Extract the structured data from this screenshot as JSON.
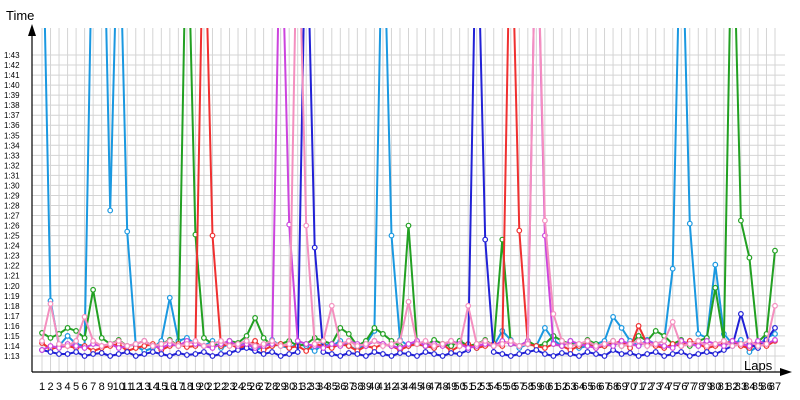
{
  "chart_data": {
    "type": "line",
    "title": "",
    "ylabel": "Time",
    "xlabel": "Laps",
    "grid": true,
    "legend": "none",
    "x_range": [
      1,
      87
    ],
    "y_range_seconds": [
      73,
      103
    ],
    "y_ticks": [
      "1:13",
      "1:14",
      "1:15",
      "1:16",
      "1:17",
      "1:18",
      "1:19",
      "1:20",
      "1:21",
      "1:22",
      "1:23",
      "1:24",
      "1:25",
      "1:26",
      "1:27",
      "1:28",
      "1:29",
      "1:30",
      "1:31",
      "1:32",
      "1:33",
      "1:34",
      "1:35",
      "1:36",
      "1:37",
      "1:38",
      "1:39",
      "1:40",
      "1:41",
      "1:42",
      "1:43"
    ],
    "x_ticks": [
      "1",
      "2",
      "3",
      "4",
      "5",
      "6",
      "7",
      "8",
      "9",
      "10",
      "11",
      "12",
      "13",
      "14",
      "15",
      "16",
      "17",
      "18",
      "19",
      "20",
      "21",
      "22",
      "23",
      "24",
      "25",
      "26",
      "27",
      "28",
      "29",
      "30",
      "31",
      "32",
      "33",
      "34",
      "35",
      "36",
      "37",
      "38",
      "39",
      "40",
      "41",
      "42",
      "43",
      "44",
      "45",
      "46",
      "47",
      "48",
      "49",
      "50",
      "51",
      "52",
      "53",
      "54",
      "55",
      "56",
      "57",
      "58",
      "59",
      "60",
      "61",
      "62",
      "63",
      "64",
      "65",
      "66",
      "67",
      "68",
      "69",
      "70",
      "71",
      "72",
      "73",
      "74",
      "75",
      "76",
      "77",
      "78",
      "79",
      "80",
      "81",
      "82",
      "83",
      "84",
      "85",
      "86",
      "87"
    ],
    "series": [
      {
        "color": "#1a98e0",
        "values": [
          120,
          78.5,
          74.0,
          75.0,
          74.2,
          74.0,
          120,
          127,
          87.5,
          120,
          85.4,
          74.0,
          73.5,
          73.8,
          74.5,
          78.8,
          74.5,
          74.8,
          74.2,
          74.0,
          74.5,
          73.8,
          74.2,
          74.0,
          74.5,
          73.5,
          74.0,
          74.6,
          74.0,
          73.8,
          74.2,
          74.0,
          73.5,
          74.2,
          74.0,
          74.5,
          74.0,
          73.6,
          74.2,
          75.5,
          120,
          85.0,
          74.6,
          74.0,
          74.5,
          74.0,
          73.8,
          74.2,
          74.0,
          74.5,
          74.0,
          73.8,
          74.2,
          74.0,
          75.5,
          74.6,
          73.8,
          74.2,
          74.0,
          75.8,
          74.6,
          74.0,
          74.5,
          73.8,
          74.0,
          74.2,
          74.5,
          76.9,
          75.8,
          74.5,
          74.0,
          74.6,
          74.2,
          74.5,
          81.7,
          120,
          86.2,
          75.2,
          74.8,
          82.1,
          75.2,
          74.2,
          74.6,
          73.4,
          74.0,
          74.8,
          75.2
        ]
      },
      {
        "color": "#22a022",
        "values": [
          75.3,
          74.8,
          75.2,
          75.8,
          75.5,
          74.8,
          79.6,
          74.8,
          74.2,
          74.6,
          74.0,
          74.2,
          74.5,
          74.0,
          74.2,
          74.6,
          74.0,
          120,
          85.1,
          74.8,
          74.2,
          74.0,
          74.5,
          74.3,
          75.0,
          76.8,
          74.8,
          74.0,
          74.2,
          74.5,
          74.0,
          74.2,
          74.8,
          74.5,
          74.2,
          75.8,
          75.2,
          74.0,
          74.5,
          75.8,
          75.2,
          74.5,
          74.0,
          86.0,
          74.2,
          74.0,
          74.6,
          74.2,
          74.0,
          74.5,
          74.0,
          74.2,
          74.6,
          74.0,
          84.6,
          74.2,
          74.0,
          74.5,
          74.0,
          74.2,
          75.0,
          74.5,
          74.2,
          74.0,
          74.6,
          74.2,
          74.0,
          74.5,
          74.0,
          74.2,
          75.0,
          74.5,
          75.5,
          75.0,
          74.2,
          74.6,
          74.0,
          74.5,
          74.8,
          79.8,
          74.5,
          120,
          86.5,
          82.8,
          74.4,
          75.2,
          83.5
        ]
      },
      {
        "color": "#ef3030",
        "values": [
          74.3,
          73.7,
          73.9,
          74.0,
          73.8,
          74.0,
          73.5,
          73.8,
          74.0,
          74.2,
          73.5,
          73.8,
          74.0,
          74.2,
          73.6,
          74.0,
          74.2,
          73.9,
          74.0,
          120,
          85.0,
          74.0,
          74.2,
          73.8,
          74.0,
          74.5,
          73.6,
          74.0,
          74.2,
          73.8,
          74.0,
          73.5,
          74.2,
          74.0,
          73.8,
          74.2,
          74.0,
          73.5,
          74.0,
          73.8,
          74.2,
          74.0,
          73.6,
          74.0,
          74.2,
          74.0,
          73.8,
          74.2,
          73.5,
          74.0,
          74.2,
          73.8,
          74.0,
          74.2,
          74.0,
          120,
          85.5,
          74.2,
          74.0,
          73.8,
          74.2,
          74.0,
          73.6,
          74.0,
          74.2,
          73.8,
          74.0,
          74.2,
          74.5,
          73.8,
          76.0,
          74.2,
          74.0,
          73.8,
          74.2,
          74.0,
          74.5,
          74.2,
          73.8,
          74.0,
          74.2,
          74.5,
          74.0,
          73.8,
          74.2,
          74.0,
          74.5
        ]
      },
      {
        "color": "#2121d6",
        "values": [
          73.6,
          73.4,
          73.2,
          73.2,
          73.4,
          73.0,
          73.2,
          73.3,
          73.0,
          73.2,
          73.4,
          73.0,
          73.2,
          73.4,
          73.2,
          73.0,
          73.3,
          73.1,
          73.2,
          73.4,
          73.0,
          73.2,
          73.3,
          73.6,
          73.8,
          73.5,
          73.2,
          73.4,
          73.0,
          73.2,
          73.4,
          120,
          83.8,
          73.4,
          73.2,
          73.0,
          73.3,
          73.2,
          73.0,
          73.4,
          73.2,
          73.0,
          73.3,
          73.2,
          73.0,
          73.4,
          73.2,
          73.0,
          73.3,
          73.2,
          73.6,
          120,
          84.6,
          73.4,
          73.2,
          73.0,
          73.2,
          73.4,
          73.6,
          73.2,
          73.0,
          73.3,
          73.2,
          73.0,
          73.4,
          73.2,
          73.0,
          73.6,
          73.2,
          73.3,
          73.0,
          73.2,
          73.4,
          73.0,
          73.2,
          73.4,
          73.0,
          73.2,
          73.4,
          73.2,
          73.6,
          74.0,
          77.2,
          74.2,
          73.8,
          74.6,
          75.8
        ]
      },
      {
        "color": "#cc44dd",
        "values": [
          73.6,
          74.0,
          73.8,
          74.2,
          74.0,
          73.8,
          74.2,
          74.0,
          74.2,
          73.8,
          74.0,
          74.2,
          74.5,
          74.0,
          73.8,
          74.2,
          74.0,
          74.5,
          74.2,
          74.0,
          73.8,
          74.2,
          74.5,
          74.0,
          74.2,
          73.8,
          74.0,
          74.2,
          120,
          86.1,
          74.5,
          74.2,
          74.0,
          73.8,
          74.2,
          74.0,
          74.5,
          74.2,
          74.0,
          74.5,
          74.2,
          74.0,
          73.8,
          74.2,
          74.5,
          74.0,
          74.2,
          74.0,
          74.5,
          74.2,
          73.8,
          74.0,
          74.2,
          74.0,
          74.5,
          74.2,
          74.0,
          74.5,
          120,
          85.0,
          74.2,
          74.0,
          74.5,
          74.2,
          74.0,
          73.8,
          74.2,
          74.0,
          74.5,
          74.2,
          74.0,
          74.5,
          74.2,
          74.0,
          73.8,
          74.5,
          74.2,
          74.0,
          74.5,
          74.2,
          74.0,
          74.5,
          74.2,
          74.0,
          74.5,
          74.2,
          74.6
        ]
      },
      {
        "color": "#f48fbf",
        "values": [
          74.5,
          78.2,
          74.2,
          74.0,
          74.5,
          76.9,
          74.5,
          74.0,
          74.2,
          74.5,
          74.0,
          74.2,
          74.5,
          74.0,
          74.2,
          74.5,
          74.0,
          74.2,
          74.5,
          74.0,
          74.2,
          74.5,
          74.0,
          74.2,
          74.5,
          74.0,
          74.2,
          74.5,
          74.0,
          74.2,
          120,
          86.0,
          74.2,
          74.5,
          78.0,
          74.2,
          74.5,
          74.0,
          74.2,
          74.5,
          74.0,
          74.2,
          74.5,
          78.4,
          74.2,
          74.5,
          74.0,
          74.2,
          74.5,
          74.0,
          78.0,
          74.2,
          74.5,
          74.0,
          74.2,
          74.5,
          74.0,
          74.2,
          120,
          86.5,
          77.2,
          74.5,
          74.0,
          74.2,
          74.5,
          74.0,
          74.2,
          74.5,
          74.0,
          74.2,
          74.5,
          74.0,
          74.2,
          74.5,
          76.4,
          74.0,
          74.2,
          74.5,
          74.0,
          74.2,
          74.5,
          74.0,
          74.2,
          74.5,
          74.0,
          74.2,
          78.0
        ]
      }
    ]
  }
}
